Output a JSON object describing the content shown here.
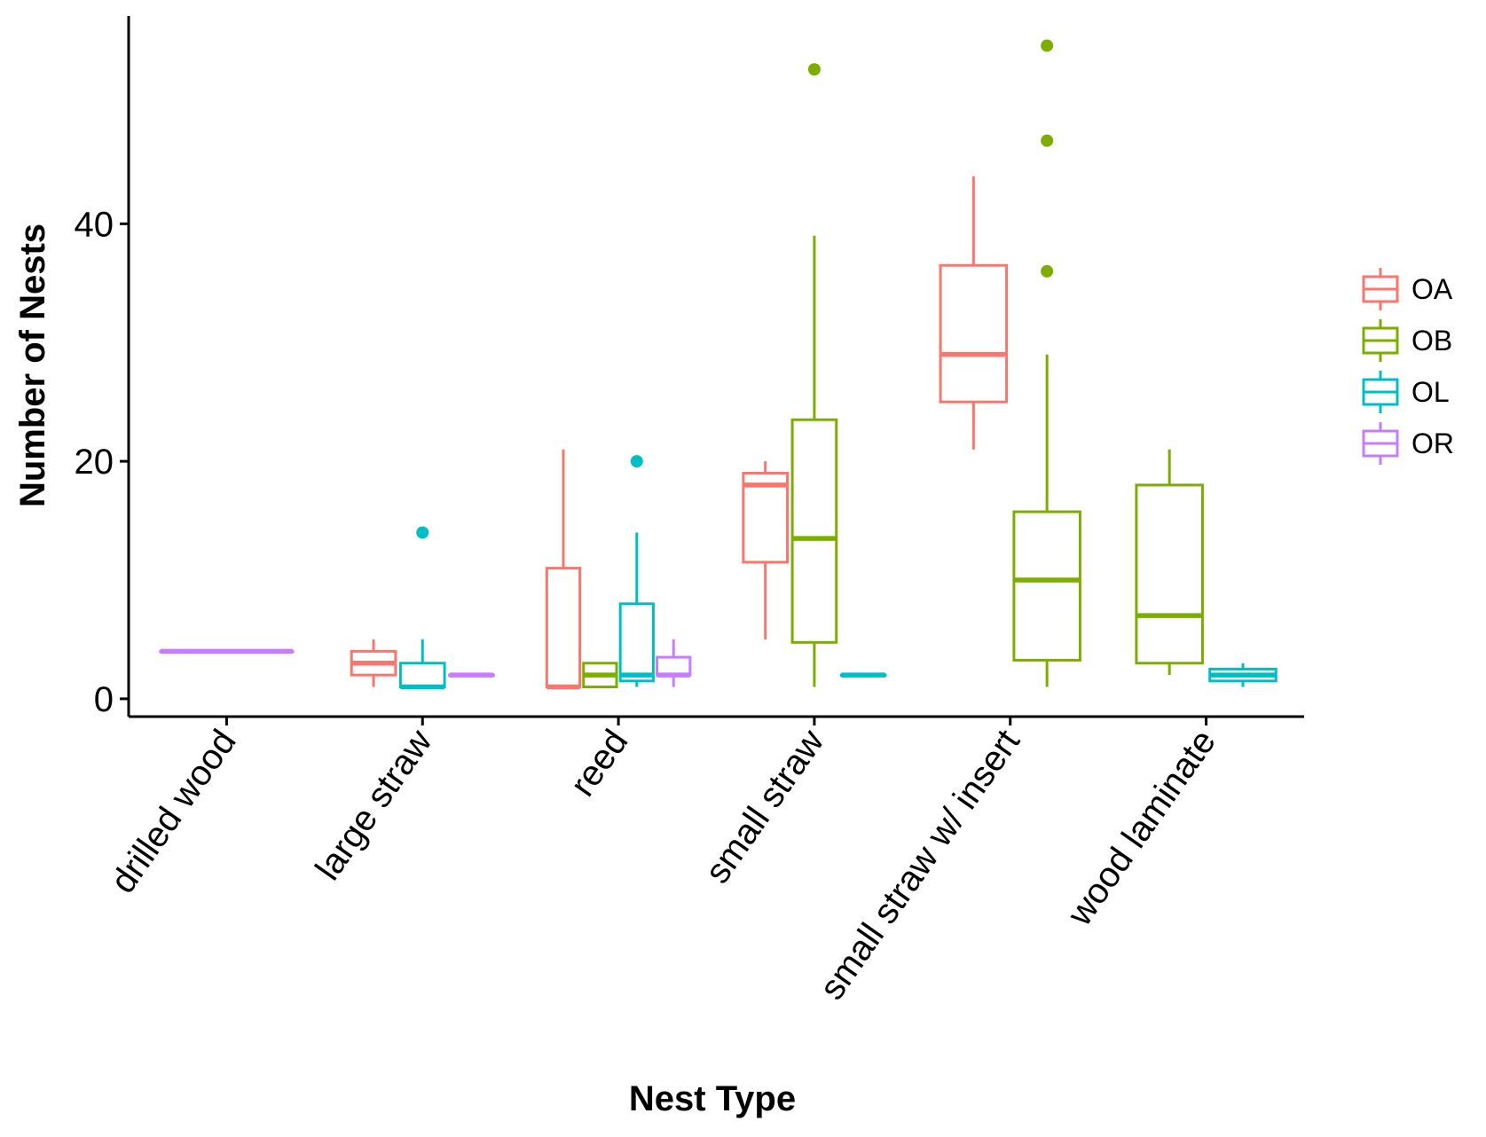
{
  "chart_data": {
    "type": "boxplot",
    "title": "",
    "xlabel": "Nest Type",
    "ylabel": "Number of Nests",
    "ylim": [
      -1.5,
      57.5
    ],
    "y_ticks": [
      0,
      20,
      40
    ],
    "grid": false,
    "legend_placement": "right",
    "categories": [
      "drilled wood",
      "large straw",
      "reed",
      "small straw",
      "small straw w/ insert",
      "wood laminate"
    ],
    "groups": [
      {
        "name": "OA",
        "color": "#F8766D"
      },
      {
        "name": "OB",
        "color": "#7CAE00"
      },
      {
        "name": "OL",
        "color": "#00BFC4"
      },
      {
        "name": "OR",
        "color": "#C77CFF"
      }
    ],
    "boxes": [
      {
        "category": "drilled wood",
        "group": "OR",
        "min": 4,
        "q1": 4,
        "median": 4,
        "q3": 4,
        "max": 4,
        "outliers": []
      },
      {
        "category": "large straw",
        "group": "OA",
        "min": 1,
        "q1": 2,
        "median": 3,
        "q3": 4,
        "max": 5,
        "outliers": []
      },
      {
        "category": "large straw",
        "group": "OL",
        "min": 1,
        "q1": 1,
        "median": 1,
        "q3": 3,
        "max": 5,
        "outliers": [
          14
        ]
      },
      {
        "category": "large straw",
        "group": "OR",
        "min": 2,
        "q1": 2,
        "median": 2,
        "q3": 2,
        "max": 2,
        "outliers": []
      },
      {
        "category": "reed",
        "group": "OA",
        "min": 1,
        "q1": 1,
        "median": 1,
        "q3": 11,
        "max": 21,
        "outliers": []
      },
      {
        "category": "reed",
        "group": "OB",
        "min": 1,
        "q1": 1,
        "median": 2,
        "q3": 3,
        "max": 3,
        "outliers": []
      },
      {
        "category": "reed",
        "group": "OL",
        "min": 1,
        "q1": 1.5,
        "median": 2,
        "q3": 8,
        "max": 14,
        "outliers": [
          20
        ]
      },
      {
        "category": "reed",
        "group": "OR",
        "min": 1,
        "q1": 2,
        "median": 2,
        "q3": 3.5,
        "max": 5,
        "outliers": []
      },
      {
        "category": "small straw",
        "group": "OA",
        "min": 5,
        "q1": 11.5,
        "median": 18,
        "q3": 19,
        "max": 20,
        "outliers": []
      },
      {
        "category": "small straw",
        "group": "OB",
        "min": 1,
        "q1": 4.75,
        "median": 13.5,
        "q3": 23.5,
        "max": 39,
        "outliers": [
          53
        ]
      },
      {
        "category": "small straw",
        "group": "OL",
        "min": 2,
        "q1": 2,
        "median": 2,
        "q3": 2,
        "max": 2,
        "outliers": []
      },
      {
        "category": "small straw w/ insert",
        "group": "OA",
        "min": 21,
        "q1": 25,
        "median": 29,
        "q3": 36.5,
        "max": 44,
        "outliers": []
      },
      {
        "category": "small straw w/ insert",
        "group": "OB",
        "min": 1,
        "q1": 3.25,
        "median": 10,
        "q3": 15.75,
        "max": 29,
        "outliers": [
          36,
          47,
          55
        ]
      },
      {
        "category": "wood laminate",
        "group": "OB",
        "min": 2,
        "q1": 3,
        "median": 7,
        "q3": 18,
        "max": 21,
        "outliers": []
      },
      {
        "category": "wood laminate",
        "group": "OL",
        "min": 1,
        "q1": 1.5,
        "median": 2,
        "q3": 2.5,
        "max": 3,
        "outliers": []
      }
    ]
  }
}
